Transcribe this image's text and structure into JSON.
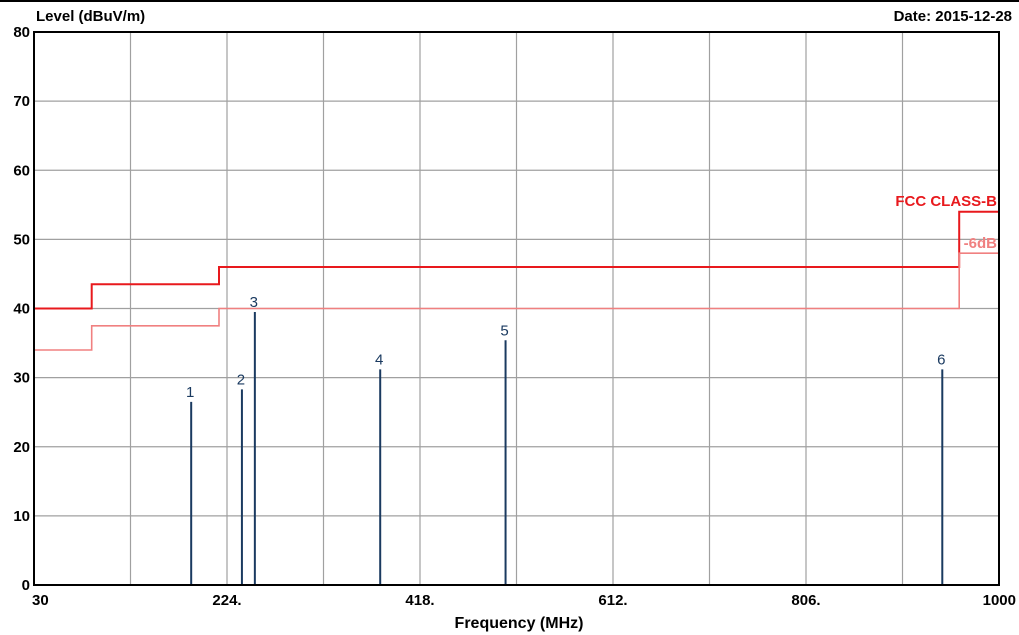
{
  "chart_data": {
    "type": "line",
    "ylabel": "Level (dBuV/m)",
    "xlabel": "Frequency (MHz)",
    "date": "Date: 2015-12-28",
    "xlim": [
      30,
      1000
    ],
    "ylim": [
      0,
      80
    ],
    "x_ticks": [
      30,
      224,
      418,
      612,
      806,
      1000
    ],
    "x_tick_labels": [
      "30",
      "224.",
      "418.",
      "612.",
      "806.",
      "1000"
    ],
    "x_grid": [
      127,
      224,
      321,
      418,
      515,
      612,
      709,
      806,
      903
    ],
    "y_ticks": [
      0,
      10,
      20,
      30,
      40,
      50,
      60,
      70,
      80
    ],
    "y_tick_labels": [
      "0",
      "10",
      "20",
      "30",
      "40",
      "50",
      "60",
      "70",
      "80"
    ],
    "grid": true,
    "limit_lines": [
      {
        "name": "FCC CLASS-B",
        "color": "#e8191d",
        "x": [
          30,
          88,
          88,
          216,
          216,
          960,
          960,
          1000
        ],
        "y": [
          40,
          40,
          43.5,
          43.5,
          46,
          46,
          54,
          54
        ]
      },
      {
        "name": "-6dB",
        "color": "#f08080",
        "x": [
          30,
          88,
          88,
          216,
          216,
          960,
          960,
          1000
        ],
        "y": [
          34,
          34,
          37.5,
          37.5,
          40,
          40,
          48,
          48
        ]
      }
    ],
    "markers": [
      {
        "label": "1",
        "freq": 188,
        "level": 26.5
      },
      {
        "label": "2",
        "freq": 239,
        "level": 28.3
      },
      {
        "label": "3",
        "freq": 252,
        "level": 39.5
      },
      {
        "label": "4",
        "freq": 378,
        "level": 31.2
      },
      {
        "label": "5",
        "freq": 504,
        "level": 35.4
      },
      {
        "label": "6",
        "freq": 943,
        "level": 31.2
      }
    ]
  }
}
